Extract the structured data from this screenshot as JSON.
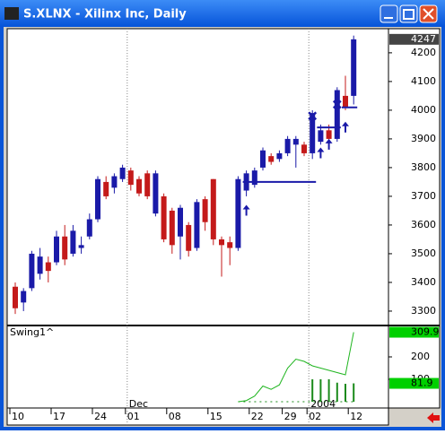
{
  "window": {
    "title": "S.XLNX - Xilinx Inc, Daily"
  },
  "chart_data": {
    "type": "candlestick",
    "categories": [
      "10",
      null,
      null,
      null,
      null,
      "17",
      null,
      null,
      null,
      null,
      "24",
      null,
      null,
      null,
      "01",
      null,
      null,
      null,
      null,
      "08",
      null,
      null,
      null,
      null,
      "15",
      null,
      null,
      null,
      null,
      "22",
      null,
      null,
      null,
      "29",
      null,
      null,
      "02",
      null,
      null,
      null,
      null,
      "12"
    ],
    "open": [
      3385,
      3330,
      3380,
      3430,
      3470,
      3470,
      3560,
      3500,
      3520,
      3560,
      3620,
      3750,
      3730,
      3760,
      3790,
      3760,
      3780,
      3640,
      3700,
      3650,
      3560,
      3600,
      3520,
      3690,
      3760,
      3550,
      3540,
      3520,
      3720,
      3740,
      3800,
      3840,
      3830,
      3850,
      3880,
      3880,
      3850,
      3890,
      3930,
      3900,
      4050,
      4050
    ],
    "high": [
      3400,
      3380,
      3510,
      3520,
      3490,
      3580,
      3600,
      3600,
      3560,
      3640,
      3770,
      3770,
      3780,
      3810,
      3800,
      3770,
      3790,
      3790,
      3710,
      3660,
      3670,
      3610,
      3690,
      3700,
      3760,
      3560,
      3560,
      3770,
      3790,
      3800,
      3870,
      3850,
      3860,
      3910,
      3910,
      3890,
      4000,
      3950,
      3950,
      4080,
      4120,
      4260
    ],
    "low": [
      3290,
      3300,
      3370,
      3410,
      3400,
      3460,
      3460,
      3490,
      3500,
      3550,
      3610,
      3690,
      3710,
      3750,
      3720,
      3700,
      3690,
      3630,
      3540,
      3500,
      3480,
      3490,
      3510,
      3580,
      3530,
      3420,
      3460,
      3510,
      3700,
      3730,
      3790,
      3810,
      3820,
      3840,
      3800,
      3840,
      3830,
      3880,
      3890,
      3890,
      4000,
      4020
    ],
    "close": [
      3310,
      3370,
      3500,
      3490,
      3440,
      3560,
      3480,
      3580,
      3530,
      3620,
      3760,
      3700,
      3770,
      3800,
      3740,
      3710,
      3700,
      3780,
      3550,
      3530,
      3660,
      3510,
      3680,
      3610,
      3550,
      3530,
      3520,
      3760,
      3780,
      3790,
      3860,
      3820,
      3850,
      3900,
      3900,
      3850,
      3990,
      3930,
      3900,
      4070,
      4010,
      4247
    ],
    "up_color": "#1a1aa8",
    "down_color": "#c41a1a",
    "ylim": [
      3253,
      4284
    ],
    "yticks": [
      3300,
      3400,
      3500,
      3600,
      3700,
      3800,
      3900,
      4000,
      4100,
      4200
    ],
    "annotations": [
      {
        "text": "Dec",
        "index": 14
      },
      {
        "text": "2004",
        "index": 36
      }
    ],
    "levels": [
      {
        "from": 28,
        "to": 36,
        "value": 3750
      },
      {
        "from": 37,
        "to": 39,
        "value": 3940
      },
      {
        "from": 40,
        "to": 41,
        "value": 4010
      }
    ],
    "arrows": [
      {
        "index": 28,
        "value": 3670
      },
      {
        "index": 37,
        "value": 3870
      },
      {
        "index": 38,
        "value": 3900
      },
      {
        "index": 40,
        "value": 3960
      }
    ],
    "crosses": [
      {
        "index": 36,
        "value": 3980
      },
      {
        "index": 39,
        "value": 4020
      }
    ],
    "indicator": {
      "title": "Swing1^",
      "color": "#1fb51f",
      "y2lim": [
        -28,
        336
      ],
      "y2ticks": [
        100,
        200
      ],
      "line": [
        null,
        null,
        null,
        null,
        null,
        null,
        null,
        null,
        null,
        null,
        null,
        null,
        null,
        null,
        null,
        null,
        null,
        null,
        null,
        null,
        null,
        null,
        null,
        null,
        null,
        null,
        null,
        0,
        5,
        25,
        70,
        55,
        75,
        150,
        190,
        180,
        160,
        150,
        140,
        130,
        120,
        309.9
      ],
      "bars": [
        null,
        null,
        null,
        null,
        null,
        null,
        null,
        null,
        null,
        null,
        null,
        null,
        null,
        null,
        null,
        null,
        null,
        null,
        null,
        null,
        null,
        null,
        null,
        null,
        null,
        null,
        null,
        null,
        null,
        null,
        null,
        null,
        null,
        null,
        null,
        null,
        100,
        100,
        100,
        85,
        80,
        81.9
      ]
    }
  }
}
